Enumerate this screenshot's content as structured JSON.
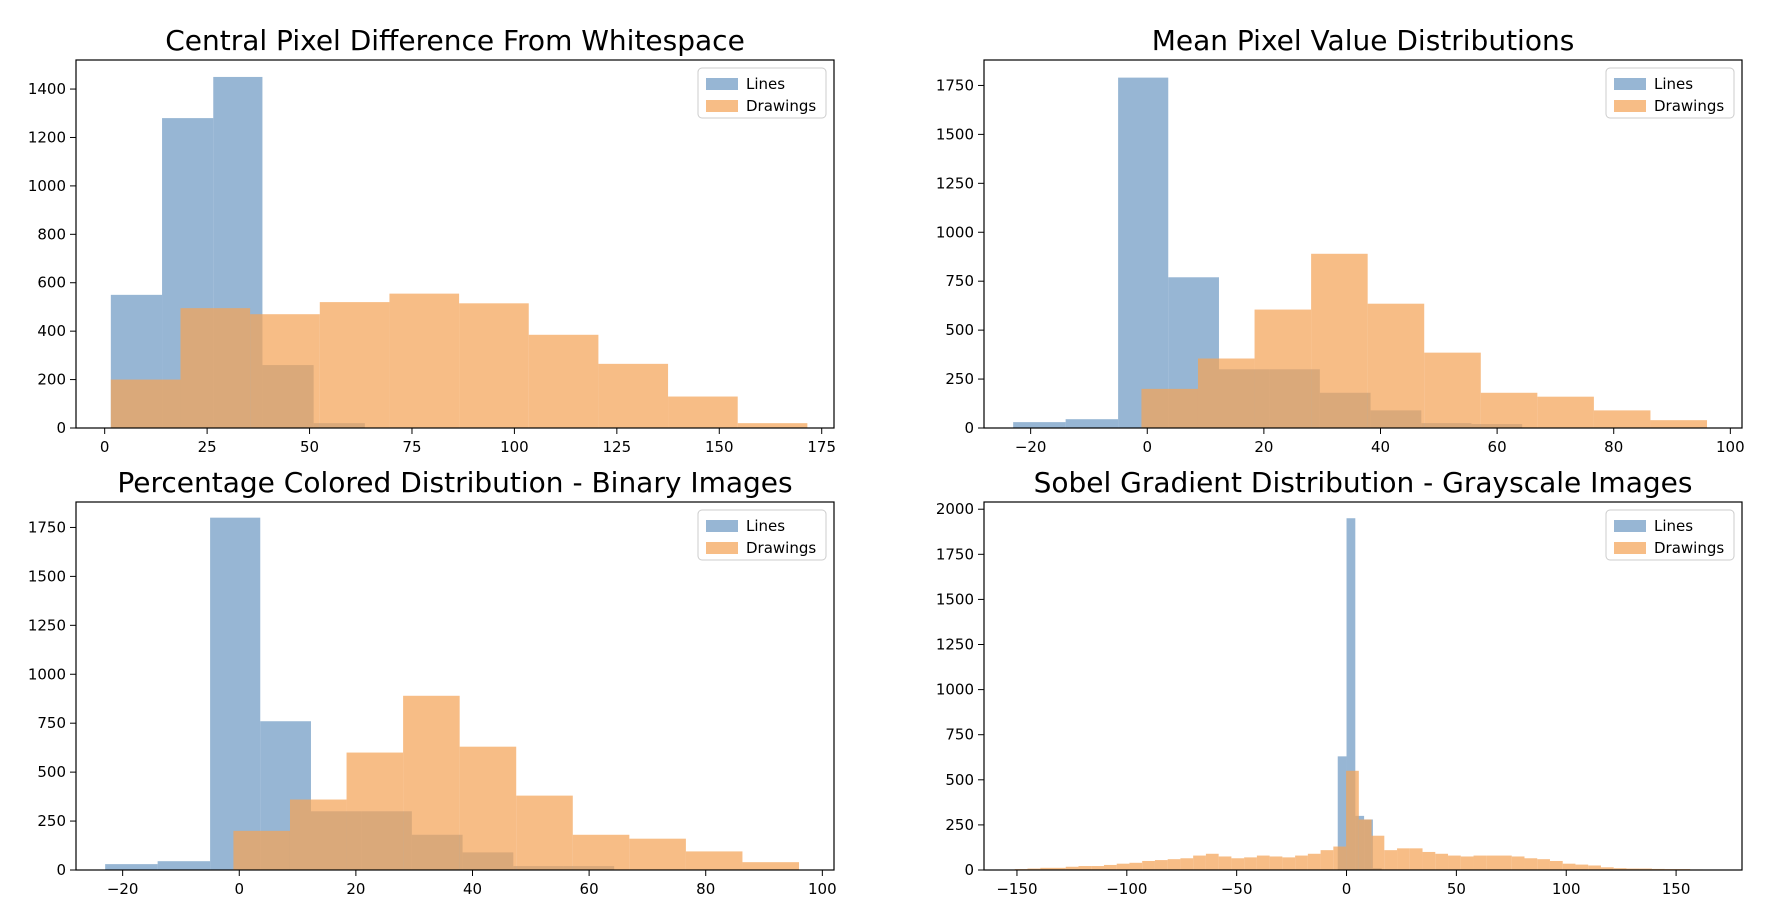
{
  "colors": {
    "lines": "#6f9ac3",
    "drawings": "#f4a358"
  },
  "chart_data": [
    {
      "type": "bar",
      "title": "Central Pixel Difference From Whitespace",
      "xlim": [
        -7,
        178
      ],
      "ylim": [
        0,
        1520
      ],
      "xticks": [
        0,
        25,
        50,
        75,
        100,
        125,
        150,
        175
      ],
      "yticks": [
        0,
        200,
        400,
        600,
        800,
        1000,
        1200,
        1400
      ],
      "legend": {
        "position": "top-right",
        "entries": [
          "Lines",
          "Drawings"
        ]
      },
      "series": [
        {
          "name": "Lines",
          "edges": [
            1.5,
            14,
            26.5,
            38.5,
            51,
            63.5
          ],
          "values": [
            550,
            1280,
            1450,
            260,
            20
          ]
        },
        {
          "name": "Drawings",
          "edges": [
            1.5,
            18.5,
            35.5,
            52.5,
            69.5,
            86.5,
            103.5,
            120.5,
            137.5,
            154.5,
            171.5
          ],
          "values": [
            200,
            495,
            470,
            520,
            555,
            515,
            385,
            265,
            130,
            20
          ]
        }
      ]
    },
    {
      "type": "bar",
      "title": "Mean Pixel Value Distributions",
      "xlim": [
        -28,
        102
      ],
      "ylim": [
        0,
        1880
      ],
      "xticks": [
        -20,
        0,
        20,
        40,
        60,
        80,
        100
      ],
      "yticks": [
        0,
        250,
        500,
        750,
        1000,
        1250,
        1500,
        1750
      ],
      "legend": {
        "position": "top-right",
        "entries": [
          "Lines",
          "Drawings"
        ]
      },
      "series": [
        {
          "name": "Lines",
          "edges": [
            -23,
            -14,
            -5,
            3.6,
            12.3,
            21,
            29.6,
            38.3,
            47,
            55.6,
            64.3
          ],
          "values": [
            30,
            45,
            1790,
            770,
            300,
            300,
            180,
            90,
            25,
            20
          ]
        },
        {
          "name": "Drawings",
          "edges": [
            -1,
            8.7,
            18.4,
            28.1,
            37.8,
            47.5,
            57.2,
            66.9,
            76.6,
            86.3,
            96
          ],
          "values": [
            200,
            355,
            605,
            890,
            635,
            385,
            180,
            160,
            90,
            40
          ]
        }
      ]
    },
    {
      "type": "bar",
      "title": "Percentage Colored Distribution - Binary Images",
      "xlim": [
        -28,
        102
      ],
      "ylim": [
        0,
        1880
      ],
      "xticks": [
        -20,
        0,
        20,
        40,
        60,
        80,
        100
      ],
      "yticks": [
        0,
        250,
        500,
        750,
        1000,
        1250,
        1500,
        1750
      ],
      "legend": {
        "position": "top-right",
        "entries": [
          "Lines",
          "Drawings"
        ]
      },
      "series": [
        {
          "name": "Lines",
          "edges": [
            -23,
            -14,
            -5,
            3.6,
            12.3,
            21,
            29.6,
            38.3,
            47,
            55.6,
            64.3
          ],
          "values": [
            30,
            45,
            1800,
            760,
            300,
            300,
            180,
            90,
            20,
            20
          ]
        },
        {
          "name": "Drawings",
          "edges": [
            -1,
            8.7,
            18.4,
            28.1,
            37.8,
            47.5,
            57.2,
            66.9,
            76.6,
            86.3,
            96
          ],
          "values": [
            200,
            360,
            600,
            890,
            630,
            380,
            180,
            160,
            95,
            40
          ]
        }
      ]
    },
    {
      "type": "bar",
      "title": "Sobel Gradient Distribution - Grayscale Images",
      "xlim": [
        -165,
        180
      ],
      "ylim": [
        0,
        2040
      ],
      "xticks": [
        -150,
        -100,
        -50,
        0,
        50,
        100,
        150
      ],
      "yticks": [
        0,
        250,
        500,
        750,
        1000,
        1250,
        1500,
        1750,
        2000
      ],
      "legend": {
        "position": "top-right",
        "entries": [
          "Lines",
          "Drawings"
        ]
      },
      "series": [
        {
          "name": "Lines",
          "edges": [
            -4,
            0,
            4,
            8,
            12,
            16
          ],
          "values": [
            630,
            1950,
            300,
            280,
            10
          ]
        },
        {
          "name": "Drawings",
          "edges": [
            -151,
            -145.2,
            -139.4,
            -133.6,
            -127.8,
            -122,
            -116.2,
            -110.4,
            -104.6,
            -98.8,
            -93,
            -87.2,
            -81.4,
            -75.6,
            -69.8,
            -64,
            -58.2,
            -52.4,
            -46.6,
            -40.8,
            -35,
            -29.2,
            -23.4,
            -17.6,
            -11.8,
            -6,
            -0.2,
            5.6,
            11.4,
            17.2,
            23,
            28.8,
            34.6,
            40.4,
            46.2,
            52,
            57.8,
            63.6,
            69.4,
            75.2,
            81,
            86.8,
            92.6,
            98.4,
            104.2,
            110,
            115.8,
            121.6,
            127.4,
            133.2,
            139,
            144.8,
            150.6,
            156.4,
            162.2
          ],
          "values": [
            5,
            8,
            12,
            12,
            18,
            22,
            22,
            28,
            35,
            40,
            50,
            55,
            60,
            65,
            80,
            90,
            75,
            65,
            70,
            80,
            75,
            70,
            80,
            90,
            110,
            130,
            550,
            280,
            190,
            110,
            120,
            120,
            100,
            90,
            80,
            75,
            80,
            80,
            80,
            75,
            65,
            60,
            50,
            35,
            30,
            25,
            15,
            10,
            8,
            8,
            6,
            5,
            5,
            3
          ]
        }
      ]
    }
  ]
}
